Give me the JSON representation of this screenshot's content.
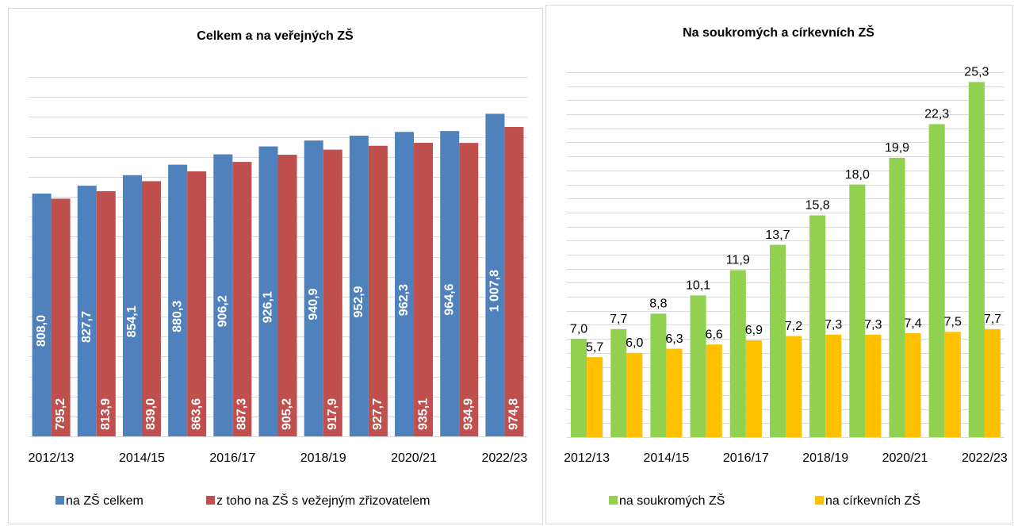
{
  "chart_data": [
    {
      "type": "bar",
      "title": "Celkem a na veřejných ZŠ",
      "categories": [
        "2012/13",
        null,
        "2014/15",
        null,
        "2016/17",
        null,
        "2018/19",
        null,
        "2020/21",
        null,
        "2022/23"
      ],
      "series": [
        {
          "name": "na ZŠ celkem",
          "color": "#4f81bd",
          "values": [
            808.0,
            827.7,
            854.1,
            880.3,
            906.2,
            926.1,
            940.9,
            952.9,
            962.3,
            964.6,
            1007.8
          ],
          "value_labels": [
            "808,0",
            "827,7",
            "854,1",
            "880,3",
            "906,2",
            "926,1",
            "940,9",
            "952,9",
            "962,3",
            "964,6",
            "1 007,8"
          ]
        },
        {
          "name": "z toho na ZŠ s vežejným zřizovatelem",
          "color": "#c0504d",
          "values": [
            795.2,
            813.9,
            839.0,
            863.6,
            887.3,
            905.2,
            917.9,
            927.7,
            935.1,
            934.9,
            974.8
          ],
          "value_labels": [
            "795,2",
            "813,9",
            "839,0",
            "863,6",
            "887,3",
            "905,2",
            "917,9",
            "927,7",
            "935,1",
            "934,9",
            "974,8"
          ]
        }
      ],
      "ylim": [
        200,
        1100
      ],
      "yticks": [
        200,
        250,
        300,
        350,
        400,
        450,
        500,
        550,
        600,
        650,
        700,
        750,
        800,
        850,
        900,
        950,
        1000,
        1050,
        1100
      ],
      "grid": true
    },
    {
      "type": "bar",
      "title": "Na soukromých a církevních ZŠ",
      "categories": [
        "2012/13",
        null,
        "2014/15",
        null,
        "2016/17",
        null,
        "2018/19",
        null,
        "2020/21",
        null,
        "2022/23"
      ],
      "series": [
        {
          "name": "na soukromých ZŠ",
          "color": "#92d050",
          "values": [
            7.0,
            7.7,
            8.8,
            10.1,
            11.9,
            13.7,
            15.8,
            18.0,
            19.9,
            22.3,
            25.3
          ],
          "value_labels": [
            "7,0",
            "7,7",
            "8,8",
            "10,1",
            "11,9",
            "13,7",
            "15,8",
            "18,0",
            "19,9",
            "22,3",
            "25,3"
          ]
        },
        {
          "name": "na církevních ZŠ",
          "color": "#ffc000",
          "values": [
            5.7,
            6.0,
            6.3,
            6.6,
            6.9,
            7.2,
            7.3,
            7.3,
            7.4,
            7.5,
            7.7
          ],
          "value_labels": [
            "5,7",
            "6,0",
            "6,3",
            "6,6",
            "6,9",
            "7,2",
            "7,3",
            "7,3",
            "7,4",
            "7,5",
            "7,7"
          ]
        }
      ],
      "ylim": [
        0,
        26
      ],
      "yticks": [
        0,
        1,
        2,
        3,
        4,
        5,
        6,
        7,
        8,
        9,
        10,
        11,
        12,
        13,
        14,
        15,
        16,
        17,
        18,
        19,
        20,
        21,
        22,
        23,
        24,
        25,
        26
      ],
      "grid": true
    }
  ]
}
